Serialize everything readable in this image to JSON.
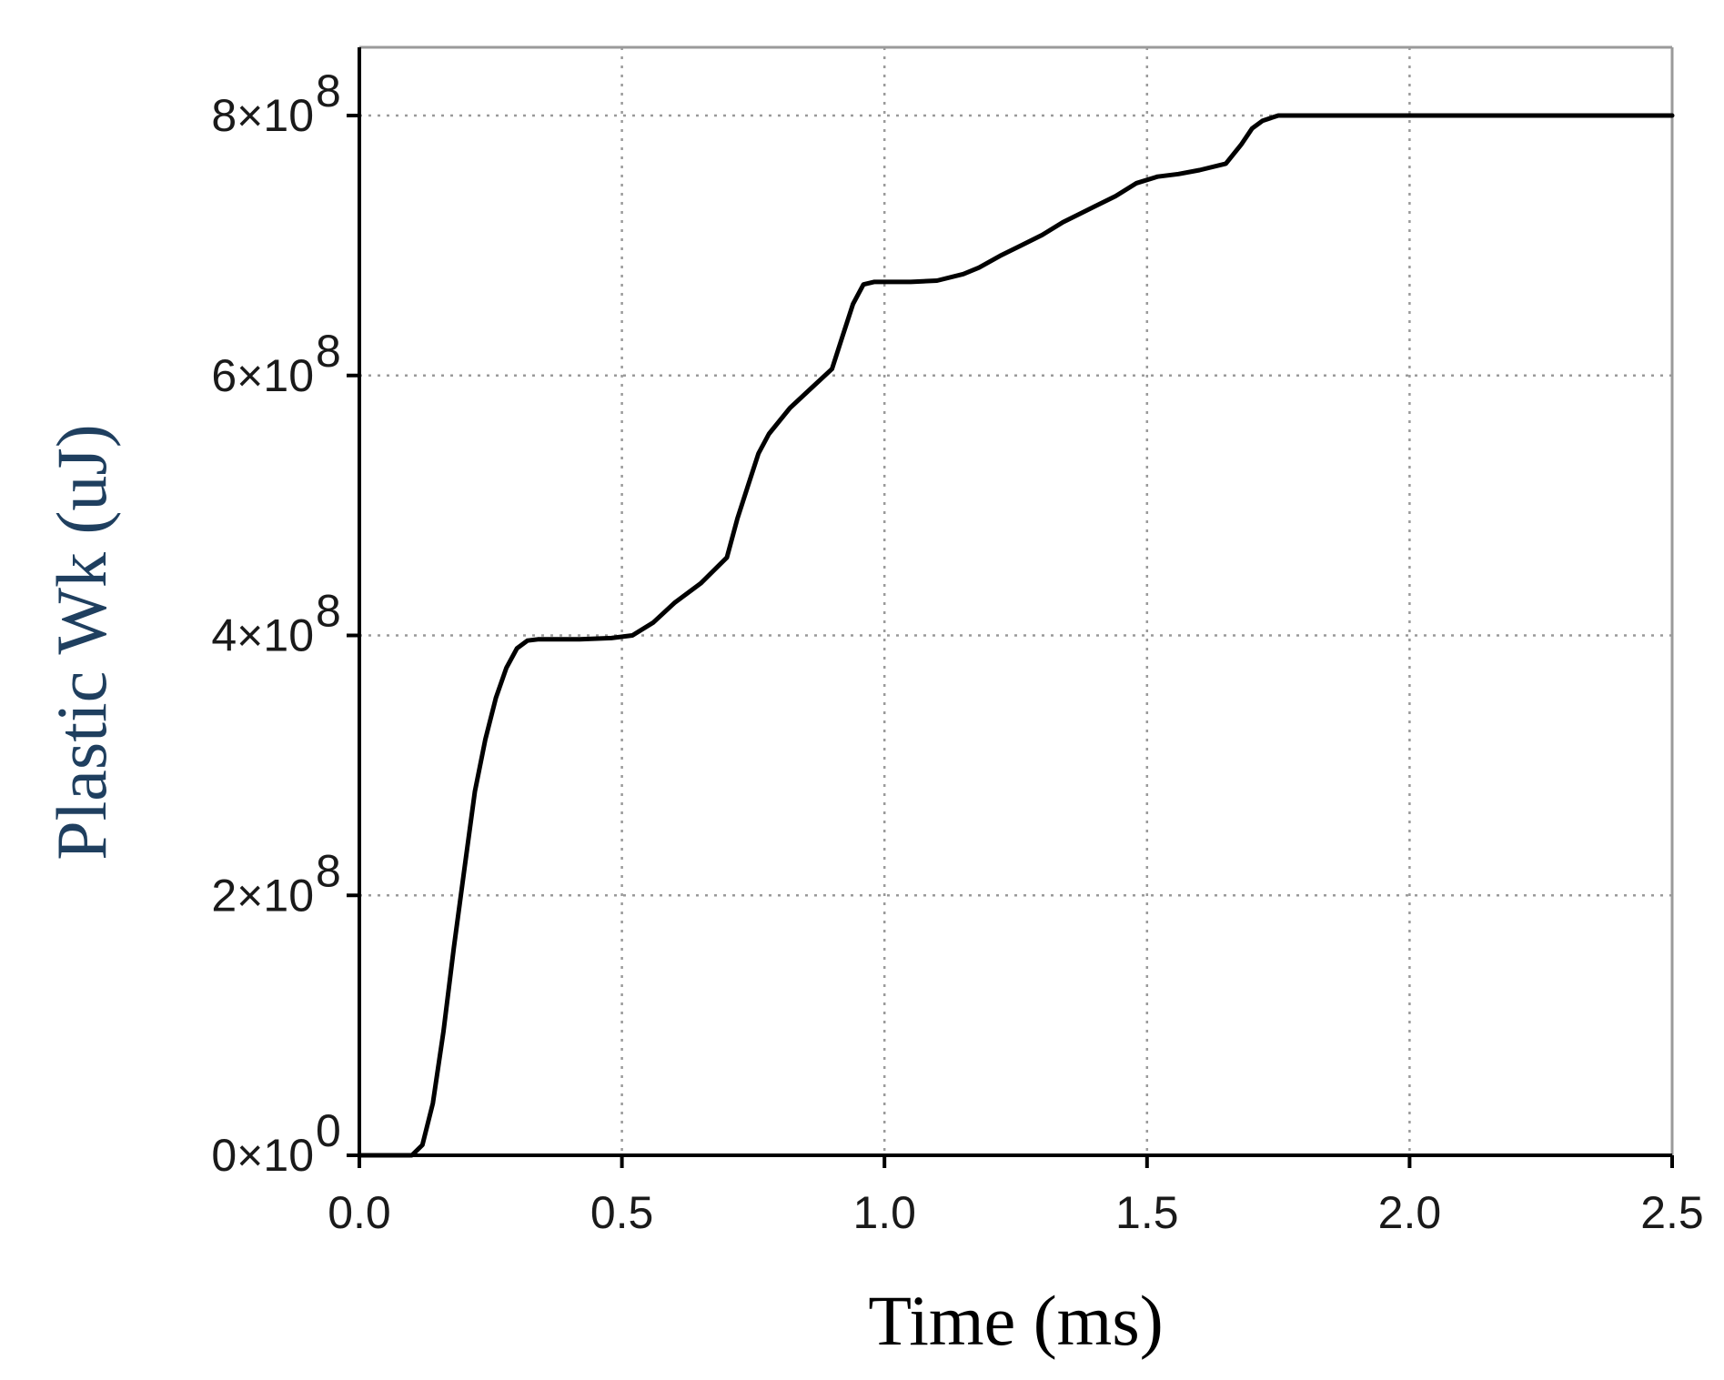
{
  "chart_data": {
    "type": "line",
    "title": "",
    "xlabel": "Time (ms)",
    "ylabel": "Plastic Wk (uJ)",
    "xlim": [
      0,
      2.5
    ],
    "ylim": [
      0,
      800000000
    ],
    "x_ticks": [
      "0.0",
      "0.5",
      "1.0",
      "1.5",
      "2.0",
      "2.5"
    ],
    "y_ticks": [
      {
        "value": 0,
        "mantissa": "0",
        "times": "×",
        "base": "10",
        "exp": "0"
      },
      {
        "value": 200000000,
        "mantissa": "2",
        "times": "×",
        "base": "10",
        "exp": "8"
      },
      {
        "value": 400000000,
        "mantissa": "4",
        "times": "×",
        "base": "10",
        "exp": "8"
      },
      {
        "value": 600000000,
        "mantissa": "6",
        "times": "×",
        "base": "10",
        "exp": "8"
      },
      {
        "value": 800000000,
        "mantissa": "8",
        "times": "×",
        "base": "10",
        "exp": "8"
      }
    ],
    "grid": true,
    "colors": {
      "line": "#000000",
      "ylabel": "#1f3f5f",
      "xlabel": "#000000",
      "grid": "#9a9a9a"
    },
    "series": [
      {
        "x": [
          0.0,
          0.08,
          0.1,
          0.12,
          0.14,
          0.16,
          0.18,
          0.2,
          0.22,
          0.24,
          0.26,
          0.28,
          0.3,
          0.32,
          0.34,
          0.37,
          0.42,
          0.48,
          0.52,
          0.56,
          0.6,
          0.65,
          0.7,
          0.72,
          0.74,
          0.76,
          0.78,
          0.82,
          0.86,
          0.9,
          0.92,
          0.94,
          0.96,
          0.98,
          1.0,
          1.05,
          1.1,
          1.15,
          1.18,
          1.22,
          1.26,
          1.3,
          1.34,
          1.37,
          1.4,
          1.44,
          1.48,
          1.52,
          1.56,
          1.6,
          1.65,
          1.68,
          1.7,
          1.72,
          1.75,
          1.78,
          1.85,
          2.0,
          2.2,
          2.5
        ],
        "y": [
          0,
          0,
          0,
          8000000,
          40000000,
          95000000,
          160000000,
          220000000,
          280000000,
          320000000,
          352000000,
          375000000,
          390000000,
          396000000,
          397000000,
          397000000,
          397000000,
          398000000,
          400000000,
          410000000,
          425000000,
          440000000,
          460000000,
          490000000,
          515000000,
          540000000,
          555000000,
          575000000,
          590000000,
          605000000,
          630000000,
          655000000,
          670000000,
          672000000,
          672000000,
          672000000,
          673000000,
          678000000,
          683000000,
          692000000,
          700000000,
          708000000,
          718000000,
          724000000,
          730000000,
          738000000,
          748000000,
          753000000,
          755000000,
          758000000,
          763000000,
          778000000,
          790000000,
          796000000,
          800000000,
          800000000,
          800000000,
          800000000,
          800000000,
          800000000
        ]
      }
    ]
  }
}
